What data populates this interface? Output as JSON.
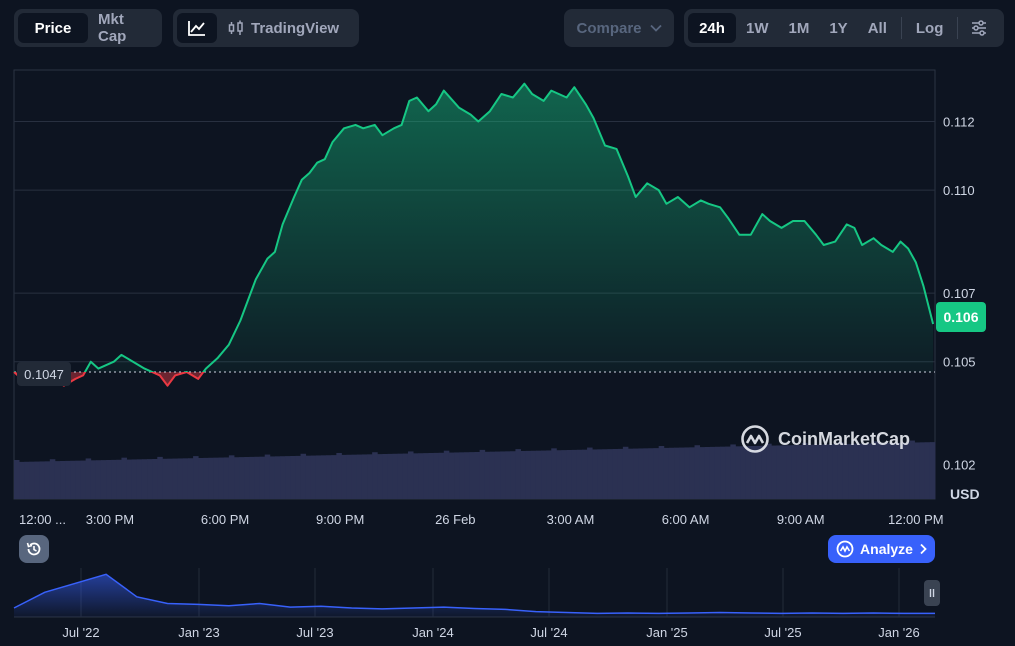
{
  "toolbar": {
    "metric_tabs": [
      "Price",
      "Mkt Cap"
    ],
    "tradingview_label": "TradingView",
    "compare_label": "Compare",
    "ranges": [
      "24h",
      "1W",
      "1M",
      "1Y",
      "All"
    ],
    "log_label": "Log"
  },
  "badges": {
    "current_price": "0.106",
    "reference_price": "0.1047",
    "currency": "USD"
  },
  "watermark": "CoinMarketCap",
  "analyze_label": "Analyze",
  "colors": {
    "background": "#0d1421",
    "up_line": "#16c784",
    "down_line": "#ea3943",
    "volume": "#2b3152",
    "accent_blue": "#3861fb",
    "navigator_line": "#3861fb"
  },
  "icons": {
    "line_chart": "line-chart-icon",
    "candles": "candlestick-icon",
    "chevron": "chevron-down-icon",
    "settings": "sliders-icon",
    "history": "history-icon",
    "analyze": "ai-logo-icon",
    "watermark": "cmc-logo-icon",
    "navigator_handle": "pause-handle-icon"
  },
  "chart_data": [
    {
      "type": "line",
      "title": "",
      "ylabel": "USD",
      "ylim": [
        0.101,
        0.1135
      ],
      "yticks": [
        0.102,
        0.105,
        0.107,
        0.11,
        0.112
      ],
      "ytick_labels": [
        "0.102",
        "0.105",
        "0.107",
        "0.110",
        "0.112"
      ],
      "xlabels": [
        "12:00 ...",
        "3:00 PM",
        "6:00 PM",
        "9:00 PM",
        "26 Feb",
        "3:00 AM",
        "6:00 AM",
        "9:00 AM",
        "12:00 PM"
      ],
      "xlabel_positions_hours": [
        0,
        2.5,
        5.5,
        8.5,
        11.5,
        14.5,
        17.5,
        20.5,
        23.5
      ],
      "reference_value": 0.1047,
      "last_value": 0.106,
      "grid": true,
      "series": [
        {
          "name": "Price",
          "x_hours": [
            0,
            0.3,
            0.5,
            0.8,
            1.0,
            1.3,
            1.6,
            1.8,
            2.0,
            2.2,
            2.6,
            2.8,
            3.1,
            3.4,
            3.8,
            4.0,
            4.2,
            4.5,
            4.8,
            5.0,
            5.3,
            5.6,
            5.9,
            6.1,
            6.3,
            6.6,
            6.8,
            7.0,
            7.3,
            7.5,
            7.7,
            7.9,
            8.1,
            8.3,
            8.6,
            8.9,
            9.1,
            9.4,
            9.6,
            9.9,
            10.1,
            10.3,
            10.5,
            10.8,
            11.0,
            11.2,
            11.6,
            11.9,
            12.1,
            12.4,
            12.7,
            13.0,
            13.3,
            13.5,
            13.8,
            14.0,
            14.4,
            14.6,
            14.9,
            15.1,
            15.4,
            15.7,
            16.0,
            16.2,
            16.5,
            16.8,
            17.0,
            17.3,
            17.6,
            17.9,
            18.1,
            18.4,
            18.6,
            18.9,
            19.2,
            19.5,
            19.7,
            20.0,
            20.3,
            20.6,
            20.9,
            21.1,
            21.4,
            21.7,
            21.9,
            22.1,
            22.4,
            22.6,
            22.9,
            23.1,
            23.3,
            23.5,
            23.7,
            23.95
          ],
          "values": [
            0.1047,
            0.1044,
            0.1045,
            0.1044,
            0.1045,
            0.1043,
            0.1045,
            0.1046,
            0.105,
            0.1048,
            0.105,
            0.1052,
            0.105,
            0.1048,
            0.1046,
            0.1043,
            0.1046,
            0.1047,
            0.1045,
            0.1048,
            0.1051,
            0.1055,
            0.1062,
            0.1068,
            0.1074,
            0.108,
            0.1082,
            0.109,
            0.1098,
            0.1103,
            0.1105,
            0.1108,
            0.1109,
            0.1114,
            0.1118,
            0.1119,
            0.1118,
            0.1119,
            0.1116,
            0.1118,
            0.1119,
            0.1126,
            0.1127,
            0.1123,
            0.1125,
            0.1129,
            0.1124,
            0.1122,
            0.112,
            0.1123,
            0.1128,
            0.1127,
            0.1131,
            0.1128,
            0.1126,
            0.1129,
            0.1127,
            0.113,
            0.1125,
            0.1121,
            0.1113,
            0.1112,
            0.1104,
            0.1098,
            0.1102,
            0.11,
            0.1096,
            0.1098,
            0.1095,
            0.1097,
            0.1096,
            0.1095,
            0.1092,
            0.1087,
            0.1087,
            0.1093,
            0.1091,
            0.1089,
            0.1091,
            0.1091,
            0.1087,
            0.1084,
            0.1085,
            0.109,
            0.1089,
            0.1084,
            0.1086,
            0.1084,
            0.1082,
            0.1085,
            0.1083,
            0.1079,
            0.1072,
            0.1061
          ]
        }
      ]
    },
    {
      "type": "area",
      "title": "",
      "xlabels": [
        "Jul '22",
        "Jan '23",
        "Jul '23",
        "Jan '24",
        "Jul '24",
        "Jan '25",
        "Jul '25",
        "Jan '26"
      ],
      "x_index": [
        0,
        1,
        2,
        3,
        4,
        5,
        6,
        7,
        8,
        9,
        10,
        11,
        12,
        13,
        14,
        15,
        16,
        17,
        18,
        19,
        20,
        21,
        22,
        23,
        24,
        25,
        26,
        27,
        28,
        29,
        30
      ],
      "values": [
        0.2,
        0.55,
        0.75,
        0.95,
        0.45,
        0.3,
        0.28,
        0.25,
        0.3,
        0.22,
        0.24,
        0.2,
        0.18,
        0.2,
        0.22,
        0.19,
        0.17,
        0.12,
        0.1,
        0.08,
        0.09,
        0.08,
        0.09,
        0.1,
        0.09,
        0.08,
        0.09,
        0.08,
        0.09,
        0.08,
        0.08
      ]
    }
  ]
}
